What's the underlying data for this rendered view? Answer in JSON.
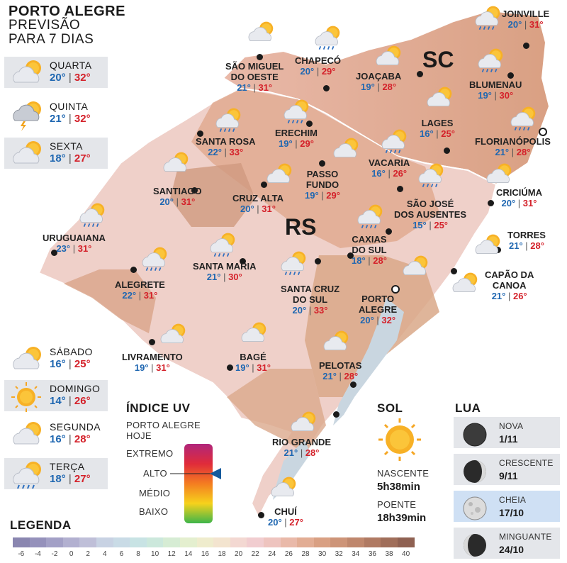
{
  "header": {
    "line1": "PORTO ALEGRE",
    "line2": "PREVISÃO",
    "line3": "PARA 7 DIAS"
  },
  "forecast": [
    {
      "day": "QUARTA",
      "min": "20°",
      "max": "32°",
      "icon": "partly-cloudy-icon"
    },
    {
      "day": "QUINTA",
      "min": "21°",
      "max": "32°",
      "icon": "thunderstorm-icon"
    },
    {
      "day": "SEXTA",
      "min": "18°",
      "max": "27°",
      "icon": "partly-cloudy-icon"
    },
    {
      "day": "SÁBADO",
      "min": "16°",
      "max": "25°",
      "icon": "partly-cloudy-icon"
    },
    {
      "day": "DOMINGO",
      "min": "14°",
      "max": "26°",
      "icon": "sun-icon"
    },
    {
      "day": "SEGUNDA",
      "min": "16°",
      "max": "28°",
      "icon": "partly-cloudy-icon"
    },
    {
      "day": "TERÇA",
      "min": "18°",
      "max": "27°",
      "icon": "rain-sun-icon"
    }
  ],
  "states": {
    "rs": "RS",
    "sc": "SC"
  },
  "cities": [
    {
      "l1": "JOINVILLE",
      "l2": "",
      "min": "20°",
      "max": "31°"
    },
    {
      "l1": "BLUMENAU",
      "l2": "",
      "min": "19°",
      "max": "30°"
    },
    {
      "l1": "CHAPECÓ",
      "l2": "",
      "min": "20°",
      "max": "29°"
    },
    {
      "l1": "SÃO MIGUEL",
      "l2": "DO OESTE",
      "min": "21°",
      "max": "31°"
    },
    {
      "l1": "JOAÇABA",
      "l2": "",
      "min": "19°",
      "max": "28°"
    },
    {
      "l1": "LAGES",
      "l2": "",
      "min": "16°",
      "max": "25°"
    },
    {
      "l1": "FLORIANÓPOLIS",
      "l2": "",
      "min": "21°",
      "max": "28°"
    },
    {
      "l1": "SANTA ROSA",
      "l2": "",
      "min": "22°",
      "max": "33°"
    },
    {
      "l1": "ERECHIM",
      "l2": "",
      "min": "19°",
      "max": "29°"
    },
    {
      "l1": "VACARIA",
      "l2": "",
      "min": "16°",
      "max": "26°"
    },
    {
      "l1": "PASSO",
      "l2": "FUNDO",
      "min": "19°",
      "max": "29°"
    },
    {
      "l1": "SANTIAGO",
      "l2": "",
      "min": "20°",
      "max": "31°"
    },
    {
      "l1": "CRUZ ALTA",
      "l2": "",
      "min": "20°",
      "max": "31°"
    },
    {
      "l1": "CRICIÚMA",
      "l2": "",
      "min": "20°",
      "max": "31°"
    },
    {
      "l1": "SÃO JOSÉ",
      "l2": "DOS AUSENTES",
      "min": "15°",
      "max": "25°"
    },
    {
      "l1": "URUGUAIANA",
      "l2": "",
      "min": "23°",
      "max": "31°"
    },
    {
      "l1": "TORRES",
      "l2": "",
      "min": "21°",
      "max": "28°"
    },
    {
      "l1": "CAXIAS",
      "l2": "DO SUL",
      "min": "18°",
      "max": "28°"
    },
    {
      "l1": "SANTA MARIA",
      "l2": "",
      "min": "21°",
      "max": "30°"
    },
    {
      "l1": "ALEGRETE",
      "l2": "",
      "min": "22°",
      "max": "31°"
    },
    {
      "l1": "CAPÃO DA",
      "l2": "CANOA",
      "min": "21°",
      "max": "26°"
    },
    {
      "l1": "SANTA CRUZ",
      "l2": "DO SUL",
      "min": "20°",
      "max": "33°"
    },
    {
      "l1": "PORTO",
      "l2": "ALEGRE",
      "min": "20°",
      "max": "32°"
    },
    {
      "l1": "LIVRAMENTO",
      "l2": "",
      "min": "19°",
      "max": "31°"
    },
    {
      "l1": "BAGÉ",
      "l2": "",
      "min": "19°",
      "max": "31°"
    },
    {
      "l1": "PELOTAS",
      "l2": "",
      "min": "21°",
      "max": "28°"
    },
    {
      "l1": "RIO GRANDE",
      "l2": "",
      "min": "21°",
      "max": "28°"
    },
    {
      "l1": "CHUÍ",
      "l2": "",
      "min": "20°",
      "max": "27°"
    }
  ],
  "uv": {
    "title": "ÍNDICE UV",
    "sub1": "PORTO ALEGRE",
    "sub2": "HOJE",
    "levels": [
      "EXTREMO",
      "ALTO",
      "MÉDIO",
      "BAIXO"
    ],
    "current": "ALTO"
  },
  "sun": {
    "title": "SOL",
    "rise_label": "NASCENTE",
    "rise": "5h38min",
    "set_label": "POENTE",
    "set": "18h39min"
  },
  "moon": {
    "title": "LUA",
    "phases": [
      {
        "name": "NOVA",
        "date": "1/11"
      },
      {
        "name": "CRESCENTE",
        "date": "9/11"
      },
      {
        "name": "CHEIA",
        "date": "17/10"
      },
      {
        "name": "MINGUANTE",
        "date": "24/10"
      }
    ]
  },
  "legend": {
    "title": "LEGENDA",
    "ticks": [
      "-6",
      "-4",
      "-2",
      "0",
      "2",
      "4",
      "6",
      "8",
      "10",
      "12",
      "14",
      "16",
      "18",
      "20",
      "22",
      "24",
      "26",
      "28",
      "30",
      "32",
      "34",
      "36",
      "38",
      "40"
    ],
    "colors": [
      "#8a86b0",
      "#9591bb",
      "#a3a0c6",
      "#b2b0d0",
      "#bfbfd8",
      "#c8d2e3",
      "#c9dbe6",
      "#c8e3e4",
      "#cce8dc",
      "#d6ecd4",
      "#e4efcf",
      "#efeccd",
      "#f3e4cf",
      "#f3d8d2",
      "#f1cdd0",
      "#eec4bf",
      "#e9b9a9",
      "#e2ad94",
      "#d9a083",
      "#cd9478",
      "#bf876d",
      "#b07a63",
      "#a06e5a",
      "#8f6152"
    ]
  },
  "colors": {
    "min": "#1f67b1",
    "max": "#d4212a",
    "uv_marker": "#155a9c"
  }
}
